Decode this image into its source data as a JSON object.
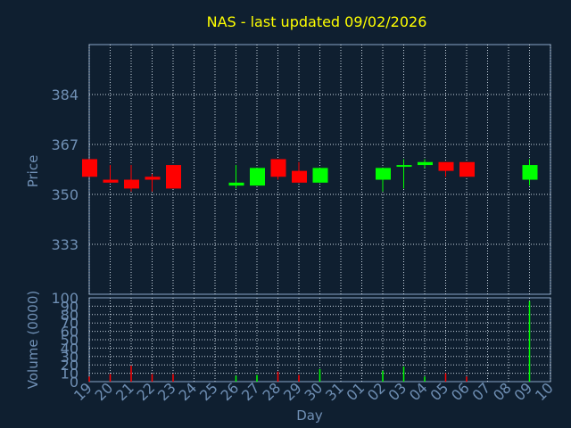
{
  "chart_data": [
    {
      "type": "candlestick",
      "title": "NAS - last updated 09/02/2026",
      "ylabel": "Price",
      "ylim": [
        316,
        401
      ],
      "yticks": [
        333,
        350,
        367,
        384
      ],
      "grid": true,
      "x": [
        "19",
        "20",
        "21",
        "22",
        "23",
        "24",
        "25",
        "26",
        "27",
        "28",
        "29",
        "30",
        "31",
        "01",
        "02",
        "03",
        "04",
        "05",
        "06",
        "07",
        "08",
        "09",
        "10"
      ],
      "candles": [
        {
          "x": "19",
          "open": 362,
          "high": 362,
          "low": 356,
          "close": 356
        },
        {
          "x": "20",
          "open": 355,
          "high": 360,
          "low": 354,
          "close": 354
        },
        {
          "x": "21",
          "open": 355,
          "high": 360,
          "low": 351,
          "close": 352
        },
        {
          "x": "22",
          "open": 356,
          "high": 357,
          "low": 351,
          "close": 355
        },
        {
          "x": "23",
          "open": 360,
          "high": 360,
          "low": 352,
          "close": 352
        },
        {
          "x": "26",
          "open": 353,
          "high": 360,
          "low": 352,
          "close": 354
        },
        {
          "x": "27",
          "open": 353,
          "high": 359,
          "low": 353,
          "close": 359
        },
        {
          "x": "28",
          "open": 362,
          "high": 362,
          "low": 355,
          "close": 356
        },
        {
          "x": "29",
          "open": 358,
          "high": 361,
          "low": 354,
          "close": 354
        },
        {
          "x": "30",
          "open": 354,
          "high": 359,
          "low": 354,
          "close": 359
        },
        {
          "x": "02",
          "open": 355,
          "high": 359,
          "low": 351,
          "close": 359
        },
        {
          "x": "03",
          "open": 360,
          "high": 362,
          "low": 352,
          "close": 360
        },
        {
          "x": "04",
          "open": 360,
          "high": 362,
          "low": 359,
          "close": 361
        },
        {
          "x": "05",
          "open": 361,
          "high": 361,
          "low": 356,
          "close": 358
        },
        {
          "x": "06",
          "open": 361,
          "high": 361,
          "low": 356,
          "close": 356
        },
        {
          "x": "09",
          "open": 355,
          "high": 362,
          "low": 353,
          "close": 360
        }
      ]
    },
    {
      "type": "bar",
      "ylabel": "Volume (0000)",
      "xlabel": "Day",
      "ylim": [
        0,
        100
      ],
      "yticks": [
        0,
        10,
        20,
        30,
        40,
        50,
        60,
        70,
        80,
        90,
        100
      ],
      "grid": true,
      "x": [
        "19",
        "20",
        "21",
        "22",
        "23",
        "24",
        "25",
        "26",
        "27",
        "28",
        "29",
        "30",
        "31",
        "01",
        "02",
        "03",
        "04",
        "05",
        "06",
        "07",
        "08",
        "09",
        "10"
      ],
      "volumes": [
        {
          "x": "19",
          "value": 6,
          "dir": "down"
        },
        {
          "x": "20",
          "value": 9,
          "dir": "down"
        },
        {
          "x": "21",
          "value": 19,
          "dir": "down"
        },
        {
          "x": "22",
          "value": 9,
          "dir": "down"
        },
        {
          "x": "23",
          "value": 9,
          "dir": "down"
        },
        {
          "x": "26",
          "value": 7,
          "dir": "up"
        },
        {
          "x": "27",
          "value": 8,
          "dir": "up"
        },
        {
          "x": "28",
          "value": 12,
          "dir": "down"
        },
        {
          "x": "29",
          "value": 8,
          "dir": "down"
        },
        {
          "x": "30",
          "value": 15,
          "dir": "up"
        },
        {
          "x": "02",
          "value": 13,
          "dir": "up"
        },
        {
          "x": "03",
          "value": 18,
          "dir": "up"
        },
        {
          "x": "04",
          "value": 6,
          "dir": "up"
        },
        {
          "x": "05",
          "value": 10,
          "dir": "down"
        },
        {
          "x": "06",
          "value": 6,
          "dir": "down"
        },
        {
          "x": "09",
          "value": 96,
          "dir": "up"
        }
      ]
    }
  ],
  "colors": {
    "background": "#0f1f30",
    "frame": "#8aa6c8",
    "grid": "#c8d4e0",
    "up": "#00ff00",
    "down": "#ff0000",
    "title": "#ffff00",
    "label": "#6f8fb4"
  }
}
